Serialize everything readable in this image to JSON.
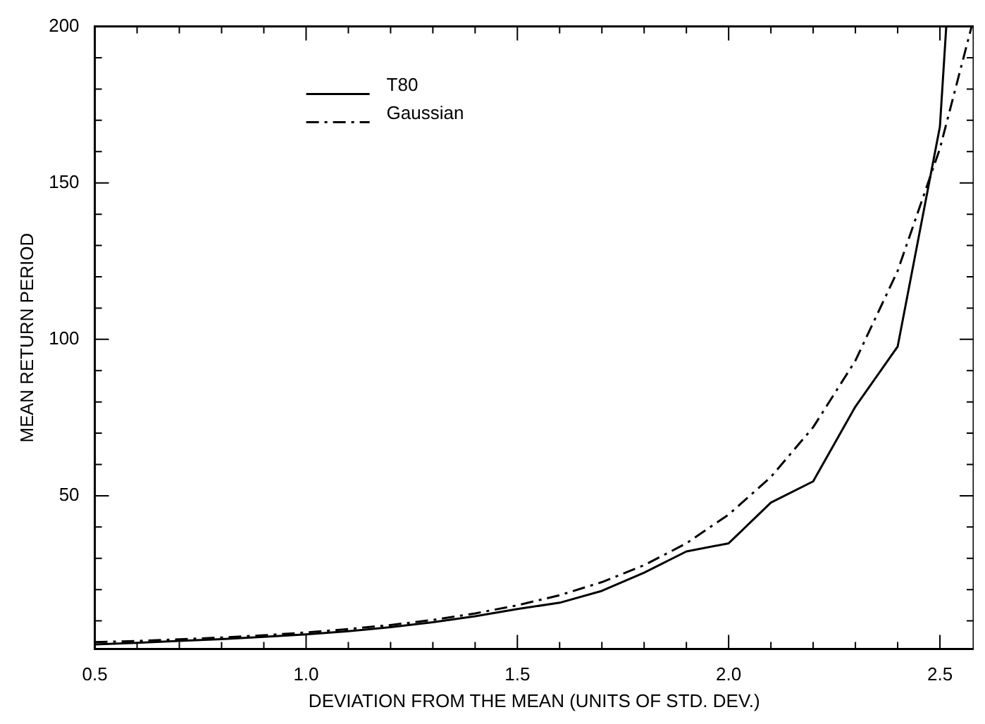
{
  "chart_data": {
    "type": "line",
    "xlabel": "DEVIATION FROM THE MEAN (UNITS OF STD. DEV.)",
    "ylabel": "MEAN RETURN PERIOD",
    "xlim": [
      0.5,
      2.58
    ],
    "ylim": [
      1,
      200
    ],
    "xticks": [
      0.5,
      {
        "value": 0.6,
        "label": null
      },
      {
        "value": 0.7,
        "label": null
      },
      {
        "value": 0.8,
        "label": null
      },
      {
        "value": 0.9,
        "label": null
      },
      {
        "value": 1.0,
        "label": "1.0"
      },
      {
        "value": 1.1,
        "label": null
      },
      {
        "value": 1.2,
        "label": null
      },
      {
        "value": 1.3,
        "label": null
      },
      {
        "value": 1.4,
        "label": null
      },
      {
        "value": 1.5,
        "label": "1.5"
      },
      {
        "value": 1.6,
        "label": null
      },
      {
        "value": 1.7,
        "label": null
      },
      {
        "value": 1.8,
        "label": null
      },
      {
        "value": 1.9,
        "label": null
      },
      {
        "value": 2.0,
        "label": "2.0"
      },
      {
        "value": 2.1,
        "label": null
      },
      {
        "value": 2.2,
        "label": null
      },
      {
        "value": 2.3,
        "label": null
      },
      {
        "value": 2.4,
        "label": null
      },
      2.5
    ],
    "yticks": [
      {
        "value": 10,
        "label": null
      },
      {
        "value": 20,
        "label": null
      },
      {
        "value": 30,
        "label": null
      },
      {
        "value": 40,
        "label": null
      },
      50,
      {
        "value": 60,
        "label": null
      },
      {
        "value": 70,
        "label": null
      },
      {
        "value": 80,
        "label": null
      },
      {
        "value": 90,
        "label": null
      },
      100,
      {
        "value": 110,
        "label": null
      },
      {
        "value": 120,
        "label": null
      },
      {
        "value": 130,
        "label": null
      },
      {
        "value": 140,
        "label": null
      },
      150,
      {
        "value": 160,
        "label": null
      },
      {
        "value": 170,
        "label": null
      },
      {
        "value": 180,
        "label": null
      },
      {
        "value": 190,
        "label": null
      },
      200
    ],
    "grid": false,
    "legend": "top left",
    "marker": "none",
    "series": [
      {
        "name": "T80",
        "color": "#000000",
        "line_style": "solid",
        "x": [
          0.5,
          0.6,
          0.7,
          0.8,
          0.9,
          1.0,
          1.1,
          1.2,
          1.3,
          1.4,
          1.5,
          1.6,
          1.7,
          1.8,
          1.9,
          2.0,
          2.1,
          2.2,
          2.3,
          2.4,
          2.5,
          2.515
        ],
        "values": [
          2.5,
          3.0,
          3.6,
          4.2,
          4.9,
          5.7,
          6.7,
          8.0,
          9.6,
          11.5,
          13.8,
          15.8,
          19.6,
          25.4,
          32.2,
          34.8,
          47.8,
          54.6,
          78.5,
          97.7,
          168,
          200
        ]
      },
      {
        "name": "Gaussian",
        "color": "#000000",
        "line_style": "dashdot",
        "x": [
          0.5,
          0.6,
          0.7,
          0.8,
          0.9,
          1.0,
          1.1,
          1.2,
          1.3,
          1.4,
          1.5,
          1.6,
          1.7,
          1.8,
          1.9,
          2.0,
          2.1,
          2.2,
          2.3,
          2.4,
          2.5,
          2.575
        ],
        "values": [
          3.2,
          3.6,
          4.1,
          4.7,
          5.4,
          6.3,
          7.4,
          8.7,
          10.3,
          12.4,
          15.0,
          18.2,
          22.4,
          27.8,
          34.8,
          44.0,
          56.0,
          71.9,
          93.2,
          121.9,
          161.0,
          200
        ]
      }
    ]
  }
}
